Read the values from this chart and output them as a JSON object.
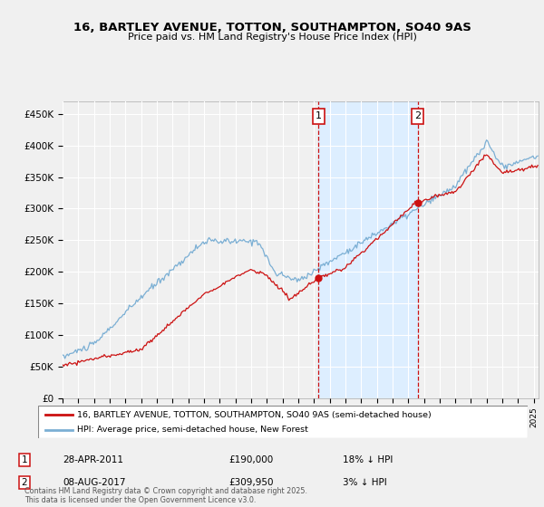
{
  "title_line1": "16, BARTLEY AVENUE, TOTTON, SOUTHAMPTON, SO40 9AS",
  "title_line2": "Price paid vs. HM Land Registry's House Price Index (HPI)",
  "legend_line1": "16, BARTLEY AVENUE, TOTTON, SOUTHAMPTON, SO40 9AS (semi-detached house)",
  "legend_line2": "HPI: Average price, semi-detached house, New Forest",
  "annotation1_label": "1",
  "annotation1_date": "28-APR-2011",
  "annotation1_price": "£190,000",
  "annotation1_pct": "18% ↓ HPI",
  "annotation2_label": "2",
  "annotation2_date": "08-AUG-2017",
  "annotation2_price": "£309,950",
  "annotation2_pct": "3% ↓ HPI",
  "footnote": "Contains HM Land Registry data © Crown copyright and database right 2025.\nThis data is licensed under the Open Government Licence v3.0.",
  "hpi_color": "#7bafd4",
  "price_color": "#cc1111",
  "annotation_vline_color": "#cc1111",
  "shaded_region_color": "#ddeeff",
  "bg_color": "#f0f0f0",
  "ylim_min": 0,
  "ylim_max": 470000,
  "yticks": [
    0,
    50000,
    100000,
    150000,
    200000,
    250000,
    300000,
    350000,
    400000,
    450000
  ],
  "ytick_labels": [
    "£0",
    "£50K",
    "£100K",
    "£150K",
    "£200K",
    "£250K",
    "£300K",
    "£350K",
    "£400K",
    "£450K"
  ],
  "ann1_x_year": 2011.3,
  "ann2_x_year": 2017.6,
  "ann1_price_val": 190000,
  "ann2_price_val": 309950,
  "xmin": 1995,
  "xmax": 2025.3
}
